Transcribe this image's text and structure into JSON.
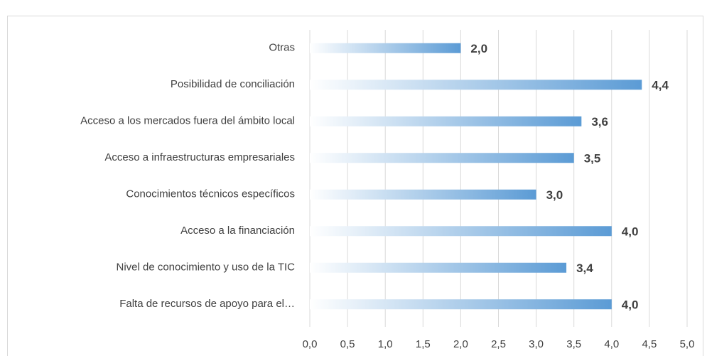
{
  "chart_data": {
    "type": "bar",
    "orientation": "horizontal",
    "categories": [
      "Otras",
      "Posibilidad de conciliación",
      "Acceso a los mercados fuera del ámbito local",
      "Acceso a infraestructuras empresariales",
      "Conocimientos técnicos específicos",
      "Acceso a la financiación",
      "Nivel de conocimiento y uso de la TIC",
      "Falta de recursos de apoyo para el…"
    ],
    "values": [
      2.0,
      4.4,
      3.6,
      3.5,
      3.0,
      4.0,
      3.4,
      4.0
    ],
    "value_labels": [
      "2,0",
      "4,4",
      "3,6",
      "3,5",
      "3,0",
      "4,0",
      "3,4",
      "4,0"
    ],
    "color": "#5b9bd5",
    "xlim": [
      0,
      5
    ],
    "xticks": [
      {
        "value": 0,
        "label": "0,0"
      },
      {
        "value": 0.5,
        "label": "0,5"
      },
      {
        "value": 1,
        "label": "1,0"
      },
      {
        "value": 1.5,
        "label": "1,5"
      },
      {
        "value": 2,
        "label": "2,0"
      },
      {
        "value": 2.5,
        "label": "2,5"
      },
      {
        "value": 3,
        "label": "3,0"
      },
      {
        "value": 3.5,
        "label": "3,5"
      },
      {
        "value": 4,
        "label": "4,0"
      },
      {
        "value": 4.5,
        "label": "4,5"
      },
      {
        "value": 5,
        "label": "5,0"
      }
    ],
    "grid": true
  }
}
